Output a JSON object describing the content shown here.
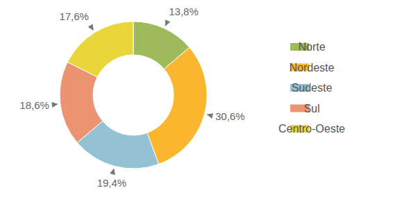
{
  "chart_data": {
    "type": "donut",
    "categories": [
      "Norte",
      "Nordeste",
      "Sudeste",
      "Sul",
      "Centro-Oeste"
    ],
    "values": [
      13.8,
      30.6,
      19.4,
      18.6,
      17.6
    ],
    "value_labels": [
      "13,8%",
      "30,6%",
      "19,4%",
      "18,6%",
      "17,6%"
    ],
    "colors": [
      "#9dbb5b",
      "#fbb630",
      "#92c2d4",
      "#ec9471",
      "#e9d63a"
    ],
    "data_labels": true,
    "legend": "right"
  }
}
